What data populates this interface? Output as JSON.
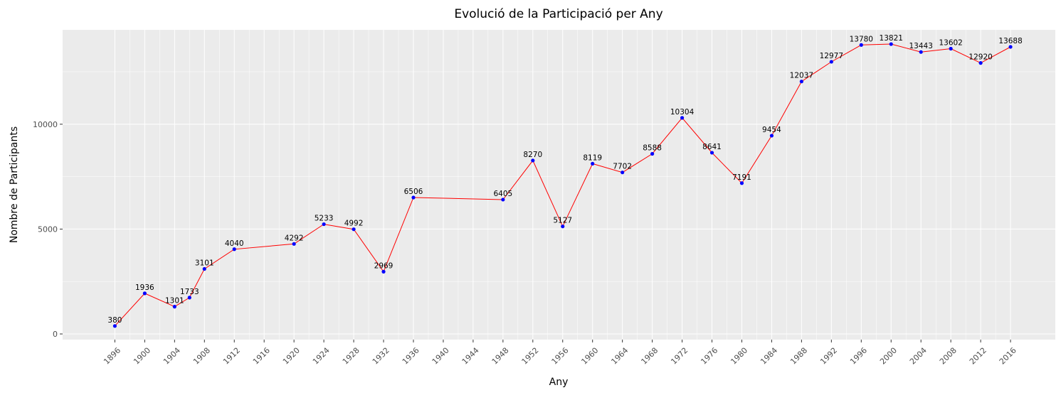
{
  "chart_data": {
    "type": "line",
    "title": "Evolució de la Participació per Any",
    "xlabel": "Any",
    "ylabel": "Nombre de Participants",
    "x": [
      1896,
      1900,
      1904,
      1906,
      1908,
      1912,
      1920,
      1924,
      1928,
      1932,
      1936,
      1948,
      1952,
      1956,
      1960,
      1964,
      1968,
      1972,
      1976,
      1980,
      1984,
      1988,
      1992,
      1996,
      2000,
      2004,
      2008,
      2012,
      2016
    ],
    "series": [
      {
        "values": [
          380,
          1936,
          1301,
          1733,
          3101,
          4040,
          4292,
          5233,
          4992,
          2969,
          6506,
          6405,
          8270,
          5127,
          8119,
          7702,
          8588,
          10304,
          8641,
          7191,
          9454,
          12037,
          12977,
          13780,
          13821,
          13443,
          13602,
          12920,
          13688
        ],
        "line_color": "#ff0000",
        "point_color": "#0000ff"
      }
    ],
    "x_ticks": [
      1896,
      1900,
      1904,
      1908,
      1912,
      1916,
      1920,
      1924,
      1928,
      1932,
      1936,
      1940,
      1944,
      1948,
      1952,
      1956,
      1960,
      1964,
      1968,
      1972,
      1976,
      1980,
      1984,
      1988,
      1992,
      1996,
      2000,
      2004,
      2008,
      2012,
      2016
    ],
    "y_ticks": [
      0,
      5000,
      10000
    ],
    "xlim": [
      1889,
      2022
    ],
    "ylim": [
      -270,
      14500
    ],
    "grid": true,
    "panel_background": "#ebebeb",
    "grid_color": "#ffffff"
  }
}
